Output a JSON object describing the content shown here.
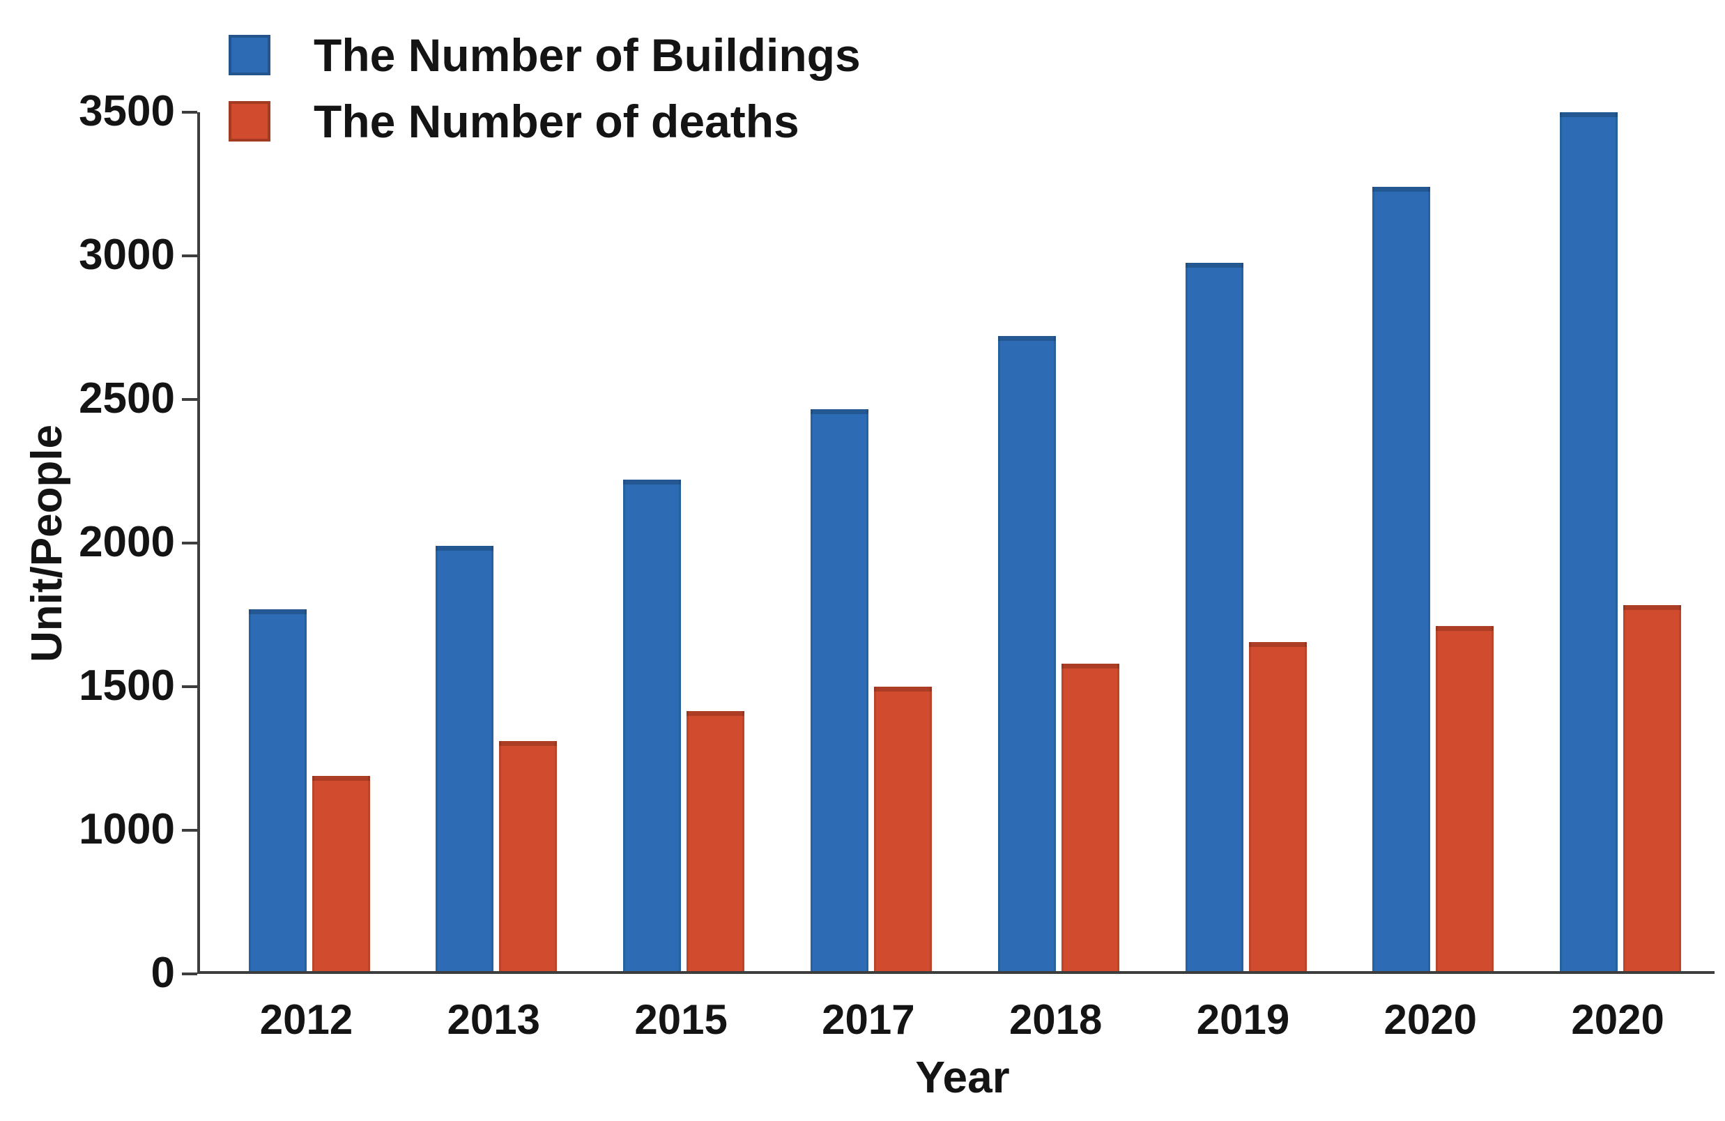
{
  "chart_data": {
    "type": "bar",
    "title": "",
    "xlabel": "Year",
    "ylabel": "Unit/People",
    "categories": [
      "2012",
      "2013",
      "2015",
      "2017",
      "2018",
      "2019",
      "2020",
      "2020"
    ],
    "series": [
      {
        "name": "The Number of Buildings",
        "color": "#2D6CB4",
        "values": [
          1770,
          1990,
          2220,
          2465,
          2720,
          2975,
          3240,
          3500
        ]
      },
      {
        "name": "The Number of deaths",
        "color": "#D14C2E",
        "values": [
          1190,
          1310,
          1415,
          1500,
          1580,
          1655,
          1710,
          1785
        ]
      }
    ],
    "y_ticks": [
      0,
      1000,
      1500,
      2000,
      2500,
      3000,
      3500
    ],
    "ylim": [
      0,
      3500
    ],
    "y_axis_note": "ticks equally spaced on screen; the 0-1000 interval occupies the same distance as each 500-unit interval (no 500 label shown)",
    "grid": false,
    "legend_position": "top-left",
    "axis_color": "#3d3d3d",
    "text_color": "#141414",
    "background_color": "#ffffff"
  }
}
